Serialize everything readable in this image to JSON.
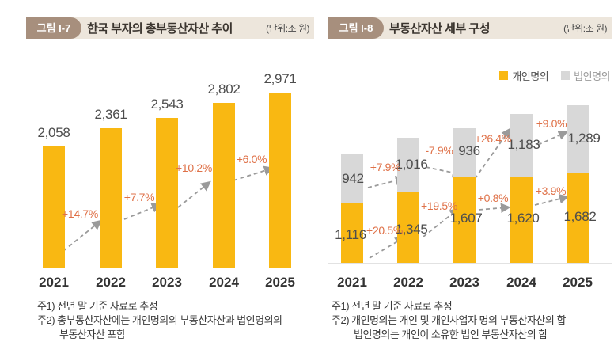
{
  "figures": [
    {
      "badge": "그림 I-7",
      "unit_label": "(단위:조 원)",
      "notes": [
        "주1) 전년 말 기준 자료로 추정",
        "주2) 총부동산자산에는 개인명의의 부동산자산과 법인명의의",
        "부동산자산 포함"
      ]
    },
    {
      "badge": "그림 I-8",
      "unit_label": "(단위:조 원)",
      "notes": [
        "주1) 전년 말 기준 자료로 추정",
        "주2) 개인명의는 개인 및 개인사업자 명의 부동산자산의 합",
        "법인명의는 개인이 소유한 법인 부동산자산의 합"
      ]
    }
  ],
  "chart_data": [
    {
      "id": "total-real-estate-assets-trend",
      "type": "bar",
      "title": "한국 부자의 총부동산자산 추이",
      "unit": "조 원",
      "categories": [
        "2021",
        "2022",
        "2023",
        "2024",
        "2025"
      ],
      "series": [
        {
          "name": "총부동산자산",
          "color": "#F9B812",
          "values": [
            2058,
            2361,
            2543,
            2802,
            2971
          ],
          "value_labels": [
            "2,058",
            "2,361",
            "2,543",
            "2,802",
            "2,971"
          ],
          "growth_labels": [
            "+14.7%",
            "+7.7%",
            "+10.2%",
            "+6.0%"
          ]
        }
      ],
      "ylim": [
        0,
        3100
      ],
      "grid": false,
      "legend_position": "none"
    },
    {
      "id": "real-estate-assets-composition",
      "type": "stacked-bar",
      "title": "부동산자산 세부 구성",
      "unit": "조 원",
      "categories": [
        "2021",
        "2022",
        "2023",
        "2024",
        "2025"
      ],
      "series": [
        {
          "name": "개인명의",
          "color": "#F9B812",
          "values": [
            1116,
            1345,
            1607,
            1620,
            1682
          ],
          "value_labels": [
            "1,116",
            "1,345",
            "1,607",
            "1,620",
            "1,682"
          ],
          "growth_labels": [
            "+20.5%",
            "+19.5%",
            "+0.8%",
            "+3.9%"
          ]
        },
        {
          "name": "법인명의",
          "color": "#D8D8D8",
          "values": [
            942,
            1016,
            936,
            1183,
            1289
          ],
          "value_labels": [
            "942",
            "1,016",
            "936",
            "1,183",
            "1,289"
          ],
          "growth_labels": [
            "+7.9%",
            "-7.9%",
            "+26.4%",
            "+9.0%"
          ]
        }
      ],
      "ylim": [
        0,
        3100
      ],
      "grid": false,
      "legend_position": "top-right"
    }
  ],
  "colors": {
    "bar_yellow": "#F9B812",
    "bar_gray": "#D8D8D8",
    "growth_text": "#DF7148",
    "arrow": "#9A9A9A",
    "badge_bg": "#A78F7D",
    "strip_bg": "#EDE6DC",
    "axis_line": "#E2E2E2"
  }
}
